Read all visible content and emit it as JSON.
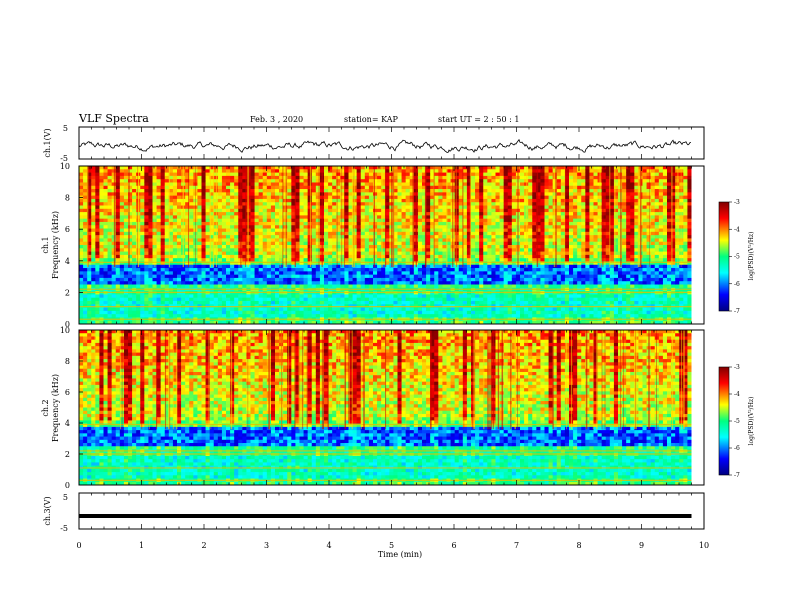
{
  "header": {
    "title": "VLF Spectra",
    "date": "Feb. 3  , 2020",
    "station": "station= KAP",
    "start": "start  UT  =   2  : 50 : 1"
  },
  "chart_data": [
    {
      "type": "line",
      "panel": "ch1-waveform",
      "ylabel": "ch.1(V)",
      "ylim": [
        -5,
        5
      ],
      "yticks": [
        "5",
        "-5"
      ],
      "xlim": [
        0,
        10
      ],
      "data_extent_min": 9.8,
      "description_of_series": "noisy waveform fluctuating around about -1 V within roughly -3..+1 V",
      "color": "#000000"
    },
    {
      "type": "heatmap",
      "panel": "ch1-spectrogram",
      "ylabel_line1": "ch.1",
      "ylabel_line2": "Frequency  (kHz)",
      "ylim": [
        0,
        10
      ],
      "yticks": [
        "0",
        "2",
        "4",
        "6",
        "8",
        "10"
      ],
      "xlim": [
        0,
        10
      ],
      "data_extent_min": 9.8,
      "colorbar": {
        "label": "log(PSD)(V²/Hz)",
        "range": [
          -7,
          -3
        ],
        "ticks": [
          "-3",
          "-4",
          "-5",
          "-6",
          "-7"
        ]
      }
    },
    {
      "type": "heatmap",
      "panel": "ch2-spectrogram",
      "ylabel_line1": "ch.2",
      "ylabel_line2": "Frequency  (kHz)",
      "ylim": [
        0,
        10
      ],
      "yticks": [
        "0",
        "2",
        "4",
        "6",
        "8",
        "10"
      ],
      "xlim": [
        0,
        10
      ],
      "data_extent_min": 9.8,
      "colorbar": {
        "label": "log(PSD)(V²/Hz)",
        "range": [
          -7,
          -3
        ],
        "ticks": [
          "-3",
          "-4",
          "-5",
          "-6",
          "-7"
        ]
      }
    },
    {
      "type": "line",
      "panel": "ch3-waveform",
      "ylabel": "ch.3(V)",
      "ylim": [
        -5,
        5
      ],
      "yticks": [
        "5",
        "-5"
      ],
      "xlim": [
        0,
        10
      ],
      "data_extent_min": 9.8,
      "constant_value": -1.4,
      "color": "#000000"
    }
  ],
  "xaxis": {
    "label": "Time  (min)",
    "ticks": [
      "0",
      "1",
      "2",
      "3",
      "4",
      "5",
      "6",
      "7",
      "8",
      "9",
      "10"
    ]
  },
  "colormap": [
    "#000080",
    "#0000ff",
    "#00ffff",
    "#00ff80",
    "#ffff00",
    "#ff0000",
    "#800000"
  ]
}
